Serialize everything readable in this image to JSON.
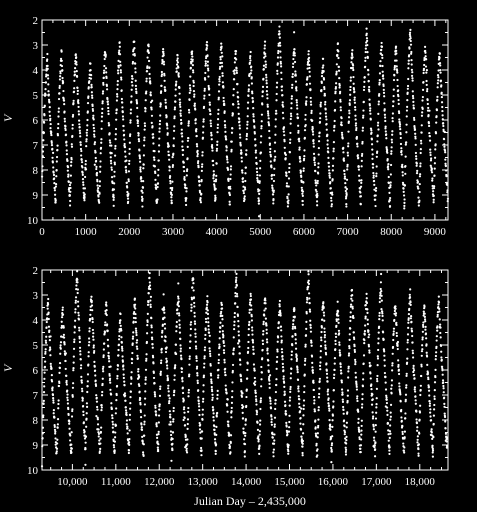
{
  "chart_data": [
    {
      "type": "scatter",
      "title": "",
      "ylabel": "V",
      "xlabel": "",
      "xlim": [
        0,
        9300
      ],
      "ylim": [
        10,
        2
      ],
      "y_inverted": true,
      "xticks": [
        0,
        1000,
        2000,
        3000,
        4000,
        5000,
        6000,
        7000,
        8000,
        9000
      ],
      "xtick_labels": [
        "0",
        "1000",
        "2000",
        "3000",
        "4000",
        "5000",
        "6000",
        "7000",
        "8000",
        "9000"
      ],
      "yticks": [
        2,
        3,
        4,
        5,
        6,
        7,
        8,
        9,
        10
      ],
      "ytick_labels": [
        "2",
        "3",
        "4",
        "5",
        "6",
        "7",
        "8",
        "9",
        "10"
      ],
      "color": "#ffffff",
      "series": [
        {
          "period_days": 332,
          "maxima": [
            {
              "x": 120,
              "y": 3.6
            },
            {
              "x": 450,
              "y": 3.3
            },
            {
              "x": 780,
              "y": 3.4
            },
            {
              "x": 1110,
              "y": 3.7
            },
            {
              "x": 1450,
              "y": 3.2
            },
            {
              "x": 1780,
              "y": 3.0
            },
            {
              "x": 2110,
              "y": 2.8
            },
            {
              "x": 2440,
              "y": 3.0
            },
            {
              "x": 2780,
              "y": 3.2
            },
            {
              "x": 3110,
              "y": 3.4
            },
            {
              "x": 3440,
              "y": 3.1
            },
            {
              "x": 3780,
              "y": 2.9
            },
            {
              "x": 4110,
              "y": 3.0
            },
            {
              "x": 4440,
              "y": 3.2
            },
            {
              "x": 4780,
              "y": 3.4
            },
            {
              "x": 5110,
              "y": 3.0
            },
            {
              "x": 5440,
              "y": 2.3
            },
            {
              "x": 5780,
              "y": 3.0
            },
            {
              "x": 6110,
              "y": 3.3
            },
            {
              "x": 6440,
              "y": 3.6
            },
            {
              "x": 6780,
              "y": 3.0
            },
            {
              "x": 7110,
              "y": 3.2
            },
            {
              "x": 7440,
              "y": 2.5
            },
            {
              "x": 7780,
              "y": 2.9
            },
            {
              "x": 8110,
              "y": 3.0
            },
            {
              "x": 8440,
              "y": 2.4
            },
            {
              "x": 8780,
              "y": 3.1
            },
            {
              "x": 9110,
              "y": 3.3
            }
          ],
          "minima_v": 9.3
        }
      ]
    },
    {
      "type": "scatter",
      "title": "",
      "ylabel": "V",
      "xlabel": "Julian Day – 2,435,000",
      "xlim": [
        9300,
        18650
      ],
      "ylim": [
        10,
        2
      ],
      "y_inverted": true,
      "xticks": [
        10000,
        11000,
        12000,
        13000,
        14000,
        15000,
        16000,
        17000,
        18000
      ],
      "xtick_labels": [
        "10,000",
        "11,000",
        "12,000",
        "13,000",
        "14,000",
        "15,000",
        "16,000",
        "17,000",
        "18,000"
      ],
      "yticks": [
        2,
        3,
        4,
        5,
        6,
        7,
        8,
        9,
        10
      ],
      "ytick_labels": [
        "2",
        "3",
        "4",
        "5",
        "6",
        "7",
        "8",
        "9",
        "10"
      ],
      "color": "#ffffff",
      "series": [
        {
          "period_days": 332,
          "maxima": [
            {
              "x": 9440,
              "y": 3.3
            },
            {
              "x": 9780,
              "y": 3.6
            },
            {
              "x": 10110,
              "y": 2.2
            },
            {
              "x": 10440,
              "y": 3.0
            },
            {
              "x": 10780,
              "y": 3.4
            },
            {
              "x": 11110,
              "y": 3.9
            },
            {
              "x": 11440,
              "y": 3.2
            },
            {
              "x": 11780,
              "y": 2.2
            },
            {
              "x": 12110,
              "y": 3.4
            },
            {
              "x": 12440,
              "y": 3.0
            },
            {
              "x": 12780,
              "y": 2.2
            },
            {
              "x": 13110,
              "y": 3.1
            },
            {
              "x": 13440,
              "y": 3.3
            },
            {
              "x": 13780,
              "y": 2.3
            },
            {
              "x": 14110,
              "y": 2.9
            },
            {
              "x": 14440,
              "y": 3.1
            },
            {
              "x": 14780,
              "y": 3.3
            },
            {
              "x": 15110,
              "y": 3.5
            },
            {
              "x": 15440,
              "y": 2.1
            },
            {
              "x": 15780,
              "y": 3.2
            },
            {
              "x": 16110,
              "y": 3.4
            },
            {
              "x": 16440,
              "y": 2.8
            },
            {
              "x": 16780,
              "y": 3.0
            },
            {
              "x": 17110,
              "y": 2.5
            },
            {
              "x": 17440,
              "y": 3.3
            },
            {
              "x": 17780,
              "y": 2.9
            },
            {
              "x": 18110,
              "y": 3.4
            },
            {
              "x": 18440,
              "y": 3.1
            }
          ],
          "minima_v": 9.3
        }
      ]
    }
  ]
}
